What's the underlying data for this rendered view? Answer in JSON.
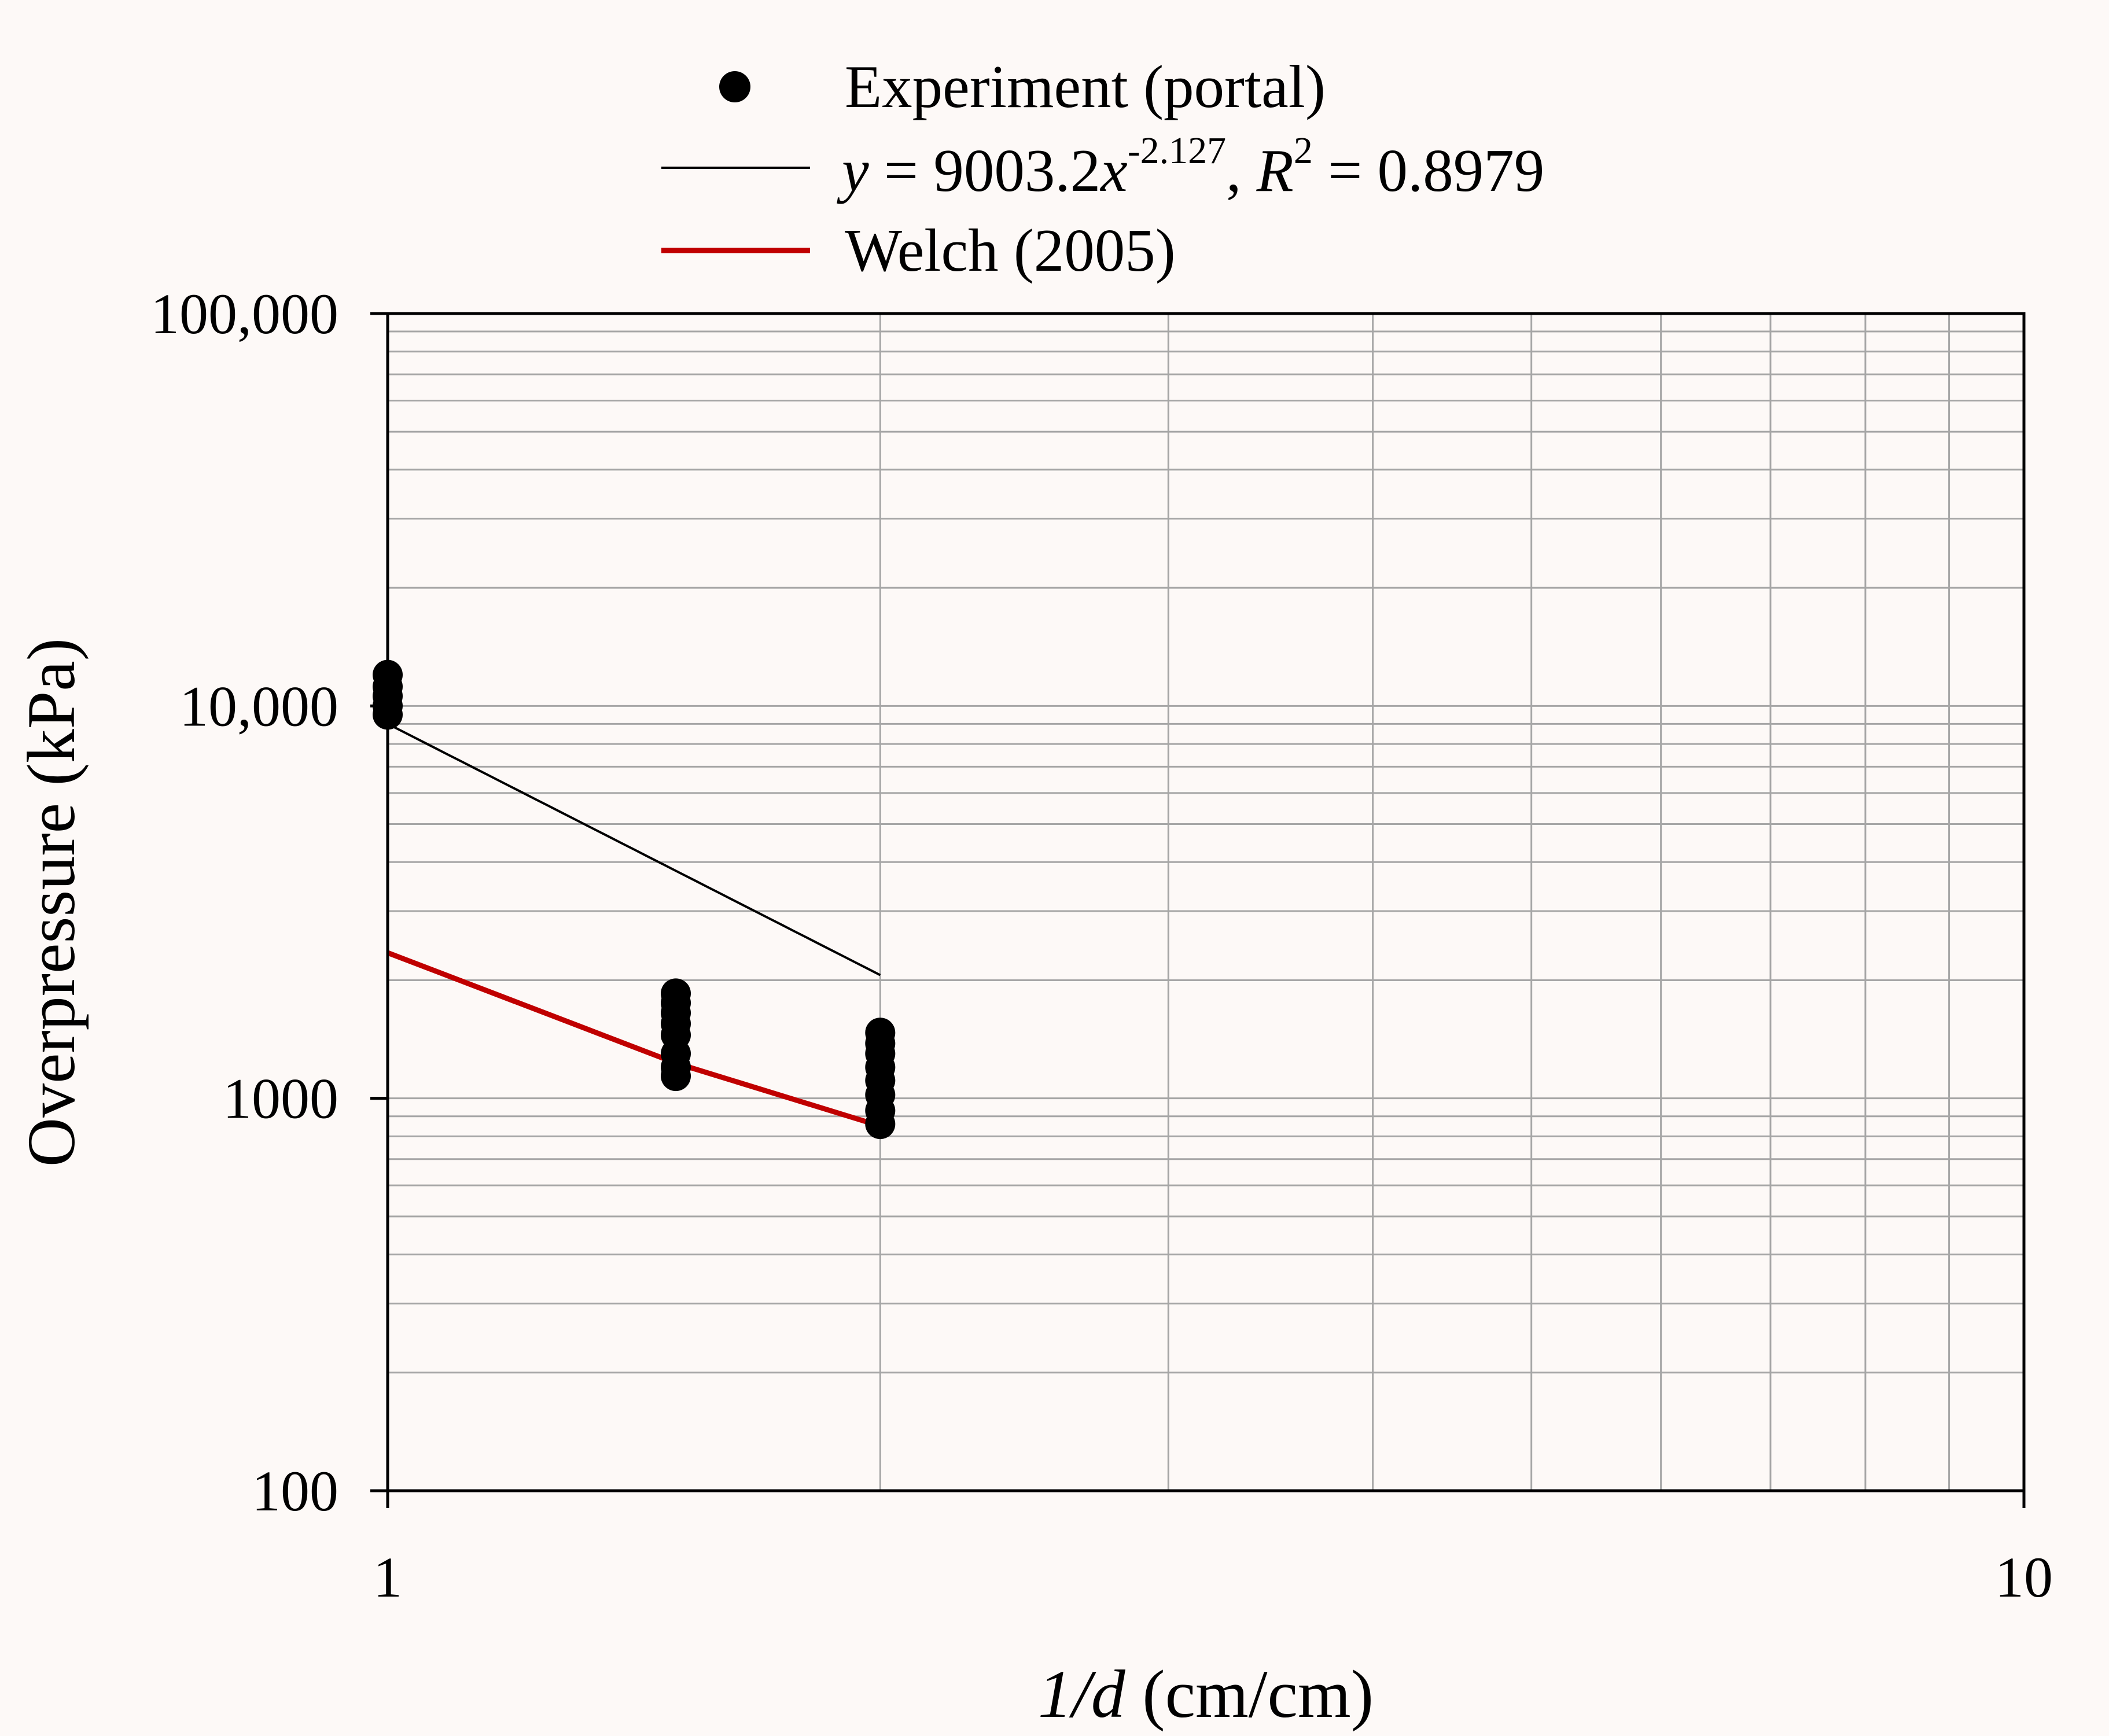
{
  "chart_data": {
    "type": "scatter",
    "x_scale": "log",
    "y_scale": "log",
    "xlim": [
      1,
      10
    ],
    "ylim": [
      100,
      100000
    ],
    "xlabel": {
      "italic": "1/d",
      "rest": " (cm/cm)"
    },
    "ylabel": "Overpressure (kPa)",
    "grid": true,
    "x_ticks": [
      "1",
      "10"
    ],
    "y_ticks": [
      "100",
      "1000",
      "10,000",
      "100,000"
    ],
    "legend": {
      "placement": "top-center",
      "experiment_label": "Experiment (portal)",
      "fit_label_parts": {
        "y": "y",
        "eq_mid": " = 9003.2",
        "x": "x",
        "exp": "-2.127",
        "comma": ", ",
        "R": "R",
        "r_sup": "2",
        "r_val": " = 0.8979"
      },
      "welch_label": "Welch (2005)"
    },
    "series": [
      {
        "name": "Experiment (portal)",
        "kind": "points",
        "color": "#000000",
        "points": [
          [
            1,
            12000
          ],
          [
            1,
            11200
          ],
          [
            1,
            10600
          ],
          [
            1,
            10000
          ],
          [
            1,
            9500
          ],
          [
            1.5,
            1850
          ],
          [
            1.5,
            1750
          ],
          [
            1.5,
            1650
          ],
          [
            1.5,
            1550
          ],
          [
            1.5,
            1450
          ],
          [
            1.5,
            1300
          ],
          [
            1.5,
            1200
          ],
          [
            1.5,
            1140
          ],
          [
            2,
            1470
          ],
          [
            2,
            1380
          ],
          [
            2,
            1300
          ],
          [
            2,
            1200
          ],
          [
            2,
            1110
          ],
          [
            2,
            1020
          ],
          [
            2,
            930
          ],
          [
            2,
            860
          ]
        ]
      },
      {
        "name": "y = 9003.2x^-2.127",
        "kind": "power_fit",
        "color": "#000000",
        "a": 9003.2,
        "b": -2.127,
        "x_range": [
          1,
          2
        ]
      },
      {
        "name": "Welch (2005)",
        "kind": "line",
        "color": "#c00000",
        "points": [
          [
            1,
            2350
          ],
          [
            1.5,
            1230
          ],
          [
            2,
            850
          ]
        ]
      }
    ]
  }
}
